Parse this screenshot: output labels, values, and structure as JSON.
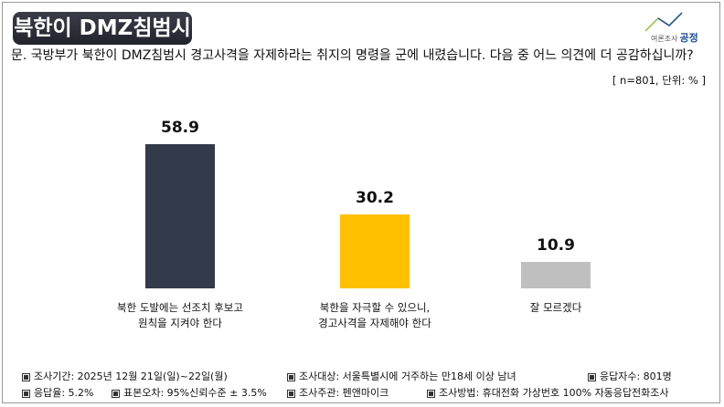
{
  "header": {
    "title": "북한이 DMZ침범시",
    "logo_small": "여론조사",
    "logo_brand": "공정"
  },
  "question": "문. 국방부가 북한이 DMZ침범시 경고사격을 자제하라는 취지의 명령을 군에 내렸습니다. 다음 중 어느 의견에 더 공감하십니까?",
  "unit_note": "[ n=801, 단위: % ]",
  "chart_data": {
    "type": "bar",
    "categories": [
      "북한 도발에는 선조치 후보고\n원칙을 지켜야 한다",
      "북한을 자극할 수 있으니,\n경고사격을 자제해야 한다",
      "잘 모르겠다"
    ],
    "values": [
      58.9,
      30.2,
      10.9
    ],
    "value_labels": [
      "58.9",
      "30.2",
      "10.9"
    ],
    "colors": [
      "#333a4a",
      "#ffc000",
      "#bfbfbf"
    ],
    "ylim": [
      0,
      60
    ]
  },
  "footer": {
    "period": "조사기간: 2025년 12월 21일(일)~22일(월)",
    "target": "조사대상: 서울특별시에 거주하는 만18세 이상 남녀",
    "sample": "응답자수: 801명",
    "response_rate": "응답율: 5.2%",
    "error": "표본오차: 95%신뢰수준 ± 3.5%",
    "sponsor": "조사주관: 펜앤마이크",
    "method": "조사방법: 휴대전화 가상번호 100% 자동응답전화조사"
  }
}
